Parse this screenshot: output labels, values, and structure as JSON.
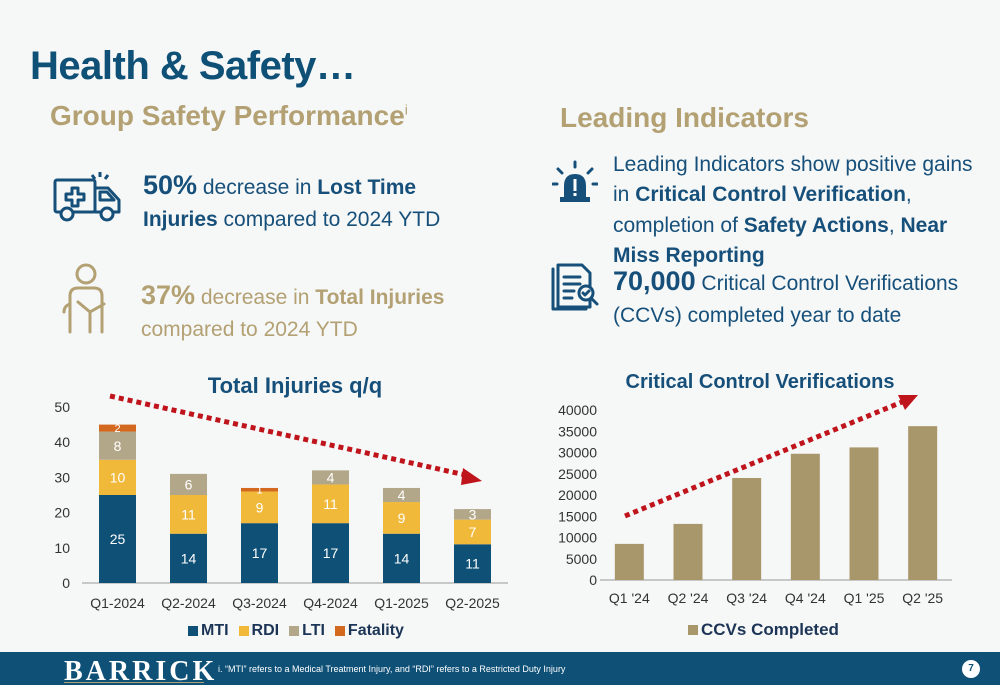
{
  "page": {
    "title": "Health & Safety…",
    "left_section_title": "Group Safety Performance",
    "left_section_sup": "i",
    "right_section_title": "Leading Indicators"
  },
  "stats": {
    "lti": {
      "pct": "50%",
      "t1": " decrease in ",
      "b1": "Lost Time Injuries",
      "t2": " compared to 2024 YTD",
      "icon": "ambulance-icon"
    },
    "total": {
      "pct": "37%",
      "t1": " decrease in ",
      "b1": "Total Injuries",
      "t2": " compared to 2024 YTD",
      "icon": "injured-person-icon"
    },
    "leading": {
      "t1": "Leading Indicators show positive gains in ",
      "b1": "Critical Control Verification",
      "t2": ", completion of ",
      "b2": "Safety Actions",
      "t3": ", ",
      "b3": "Near Miss Reporting",
      "icon": "alert-siren-icon"
    },
    "ccv": {
      "num": "70,000",
      "t1": " Critical Control Verifications (CCVs) completed year to date",
      "icon": "checklist-icon"
    }
  },
  "colors": {
    "navy": "#0f5077",
    "tan": "#b3a173",
    "mti": "#0f5077",
    "rdi": "#f0b93a",
    "lti": "#b3a78a",
    "fatality": "#d2691e",
    "ccv": "#a8976a",
    "arrow": "#c0141c"
  },
  "chart_data": [
    {
      "type": "bar",
      "stacked": true,
      "title": "Total Injuries q/q",
      "categories": [
        "Q1-2024",
        "Q2-2024",
        "Q3-2024",
        "Q4-2024",
        "Q1-2025",
        "Q2-2025"
      ],
      "series": [
        {
          "name": "MTI",
          "values": [
            25,
            14,
            17,
            17,
            14,
            11
          ]
        },
        {
          "name": "RDI",
          "values": [
            10,
            11,
            9,
            11,
            9,
            7
          ]
        },
        {
          "name": "LTI",
          "values": [
            8,
            6,
            0,
            4,
            4,
            3
          ]
        },
        {
          "name": "Fatality",
          "values": [
            2,
            0,
            1,
            0,
            0,
            0
          ]
        }
      ],
      "ylim": [
        0,
        50
      ],
      "yticks": [
        0,
        10,
        20,
        30,
        40,
        50
      ],
      "legend": "bottom",
      "trend_arrow": "decreasing"
    },
    {
      "type": "bar",
      "title": "Critical Control Verifications",
      "categories": [
        "Q1 '24",
        "Q2 '24",
        "Q3 '24",
        "Q4 '24",
        "Q1 '25",
        "Q2 '25"
      ],
      "series": [
        {
          "name": "CCVs Completed",
          "values": [
            8500,
            13200,
            24000,
            29700,
            31200,
            36200
          ]
        }
      ],
      "ylim": [
        0,
        40000
      ],
      "yticks": [
        0,
        5000,
        10000,
        15000,
        20000,
        25000,
        30000,
        35000,
        40000
      ],
      "legend": "bottom",
      "trend_arrow": "increasing"
    }
  ],
  "footer": {
    "logo": "BARRICK",
    "footnote": "i.      “MTI” refers to a Medical Treatment Injury, and “RDI” refers to a Restricted Duty Injury",
    "page": "7"
  }
}
